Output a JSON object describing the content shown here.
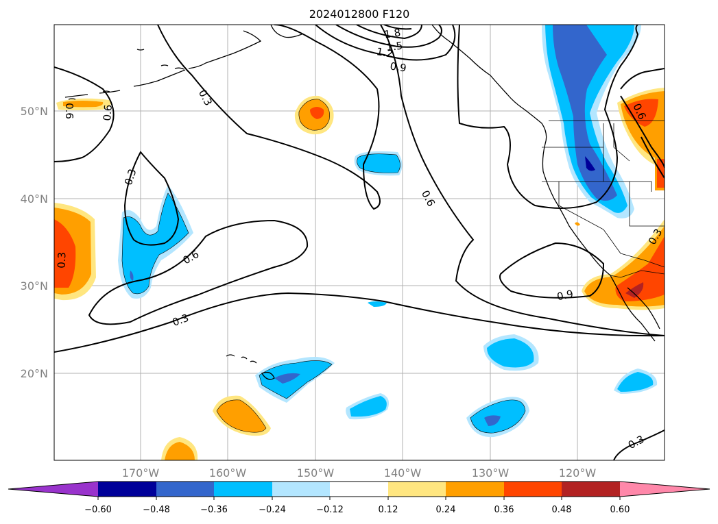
{
  "title": "2024012800 F120",
  "map": {
    "lat_labels": [
      "50°N",
      "40°N",
      "30°N",
      "20°N"
    ],
    "lon_labels": [
      "170°W",
      "160°W",
      "150°W",
      "140°W",
      "130°W",
      "120°W"
    ],
    "gridlines": true,
    "contour_labels": [
      "1.8",
      "1.5",
      "1.2",
      "0.9",
      "0.3",
      "0.6",
      "0.3",
      "0.6",
      "0.6",
      "0.9",
      "0.3",
      "0.6",
      "0.3",
      "0.6",
      "0.3",
      "0.3"
    ]
  },
  "colorbar": {
    "ticks": [
      "−0.60",
      "−0.48",
      "−0.36",
      "−0.24",
      "−0.12",
      "0.12",
      "0.24",
      "0.36",
      "0.48",
      "0.60"
    ],
    "colors": [
      "#9933cc",
      "#000099",
      "#3366cc",
      "#00bfff",
      "#b3e6ff",
      "#ffffff",
      "#ffe680",
      "#ff9f00",
      "#ff4500",
      "#b22222",
      "#ff88aa"
    ],
    "extend": "both"
  }
}
